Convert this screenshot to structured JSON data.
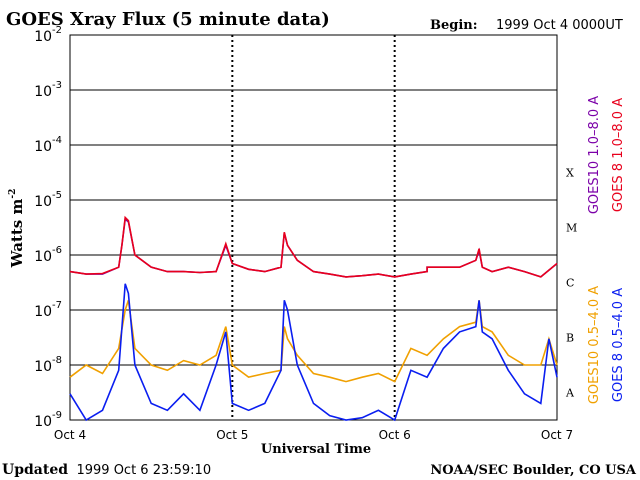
{
  "chart_data": {
    "type": "line",
    "title": "GOES Xray Flux (5 minute data)",
    "begin_label": "Begin:",
    "begin_value": "1999 Oct 4 0000UT",
    "ylabel": "Watts m",
    "ylabel_sup": "-2",
    "xlabel": "Universal Time",
    "y_scale": "log",
    "ylim": [
      1e-09,
      0.01
    ],
    "y_ticks": [
      {
        "base": "10",
        "exp": "-2"
      },
      {
        "base": "10",
        "exp": "-3"
      },
      {
        "base": "10",
        "exp": "-4"
      },
      {
        "base": "10",
        "exp": "-5"
      },
      {
        "base": "10",
        "exp": "-6"
      },
      {
        "base": "10",
        "exp": "-7"
      },
      {
        "base": "10",
        "exp": "-8"
      },
      {
        "base": "10",
        "exp": "-9"
      }
    ],
    "x_ticks": [
      "Oct 4",
      "Oct 5",
      "Oct 6",
      "Oct 7"
    ],
    "xlim_days": [
      0,
      3
    ],
    "flare_classes": [
      "X",
      "M",
      "C",
      "B",
      "A"
    ],
    "series": [
      {
        "name": "GOES10 1.0-8.0 A",
        "color": "#7b00a8",
        "x": [
          0,
          0.1,
          0.2,
          0.3,
          0.32,
          0.34,
          0.36,
          0.4,
          0.5,
          0.6,
          0.7,
          0.8,
          0.9,
          0.96,
          1.0,
          1.1,
          1.2,
          1.3,
          1.32,
          1.34,
          1.4,
          1.5,
          1.6,
          1.7,
          1.8,
          1.9,
          2.0,
          2.1,
          2.2,
          2.2,
          2.4,
          2.5,
          2.52,
          2.54,
          2.6,
          2.7,
          2.8,
          2.9,
          3.0
        ],
        "y": [
          5e-07,
          4.5e-07,
          4.5e-07,
          6e-07,
          1.5e-06,
          4.5e-06,
          4e-06,
          1e-06,
          6e-07,
          5e-07,
          5e-07,
          4.8e-07,
          5e-07,
          1.5e-06,
          7e-07,
          5.5e-07,
          5e-07,
          6e-07,
          2.5e-06,
          1.5e-06,
          8e-07,
          5e-07,
          4.5e-07,
          4e-07,
          4.2e-07,
          4.5e-07,
          4e-07,
          4.5e-07,
          5e-07,
          6e-07,
          6e-07,
          8e-07,
          1.2e-06,
          6e-07,
          5e-07,
          6e-07,
          5e-07,
          4e-07,
          7e-07
        ]
      },
      {
        "name": "GOES 8 1.0-8.0 A",
        "color": "#e8001c",
        "x": [
          0,
          0.1,
          0.2,
          0.3,
          0.32,
          0.34,
          0.36,
          0.4,
          0.5,
          0.6,
          0.7,
          0.8,
          0.9,
          0.96,
          1.0,
          1.1,
          1.2,
          1.3,
          1.32,
          1.34,
          1.4,
          1.5,
          1.6,
          1.7,
          1.8,
          1.9,
          2.0,
          2.1,
          2.2,
          2.2,
          2.4,
          2.5,
          2.52,
          2.54,
          2.6,
          2.7,
          2.8,
          2.9,
          3.0
        ],
        "y": [
          5e-07,
          4.5e-07,
          4.6e-07,
          6e-07,
          1.5e-06,
          4.8e-06,
          4.2e-06,
          1e-06,
          6e-07,
          5e-07,
          5e-07,
          4.8e-07,
          5e-07,
          1.6e-06,
          7e-07,
          5.5e-07,
          5e-07,
          6e-07,
          2.6e-06,
          1.5e-06,
          8e-07,
          5e-07,
          4.5e-07,
          4e-07,
          4.2e-07,
          4.5e-07,
          4e-07,
          4.5e-07,
          5e-07,
          6e-07,
          6e-07,
          8e-07,
          1.3e-06,
          6e-07,
          5e-07,
          6e-07,
          5e-07,
          4e-07,
          7e-07
        ]
      },
      {
        "name": "GOES10 0.5-4.0 A",
        "color": "#f0a000",
        "x": [
          0,
          0.1,
          0.2,
          0.3,
          0.34,
          0.36,
          0.4,
          0.5,
          0.6,
          0.7,
          0.8,
          0.9,
          0.96,
          1.0,
          1.1,
          1.2,
          1.3,
          1.32,
          1.34,
          1.4,
          1.5,
          1.6,
          1.7,
          1.8,
          1.9,
          2.0,
          2.1,
          2.2,
          2.3,
          2.4,
          2.5,
          2.52,
          2.54,
          2.6,
          2.7,
          2.8,
          2.9,
          2.95,
          3.0
        ],
        "y": [
          6e-09,
          1e-08,
          7e-09,
          2e-08,
          1e-07,
          1.5e-07,
          2e-08,
          1e-08,
          8e-09,
          1.2e-08,
          1e-08,
          1.5e-08,
          5e-08,
          1e-08,
          6e-09,
          7e-09,
          8e-09,
          5e-08,
          3e-08,
          1.5e-08,
          7e-09,
          6e-09,
          5e-09,
          6e-09,
          7e-09,
          5e-09,
          2e-08,
          1.5e-08,
          3e-08,
          5e-08,
          6e-08,
          1.5e-07,
          5e-08,
          4e-08,
          1.5e-08,
          1e-08,
          1e-08,
          3e-08,
          1e-08
        ]
      },
      {
        "name": "GOES 8 0.5-4.0 A",
        "color": "#0a1ef0",
        "x": [
          0,
          0.1,
          0.2,
          0.3,
          0.34,
          0.36,
          0.4,
          0.5,
          0.6,
          0.7,
          0.8,
          0.9,
          0.96,
          1.0,
          1.1,
          1.2,
          1.3,
          1.32,
          1.34,
          1.4,
          1.5,
          1.6,
          1.7,
          1.8,
          1.9,
          2.0,
          2.1,
          2.2,
          2.3,
          2.4,
          2.5,
          2.52,
          2.54,
          2.6,
          2.7,
          2.8,
          2.9,
          2.95,
          3.0
        ],
        "y": [
          3e-09,
          1e-09,
          1.5e-09,
          8e-09,
          3e-07,
          2e-07,
          1e-08,
          2e-09,
          1.5e-09,
          3e-09,
          1.5e-09,
          1e-08,
          4e-08,
          2e-09,
          1.5e-09,
          2e-09,
          8e-09,
          1.5e-07,
          1e-07,
          1e-08,
          2e-09,
          1.2e-09,
          1e-09,
          1.1e-09,
          1.5e-09,
          1e-09,
          8e-09,
          6e-09,
          2e-08,
          4e-08,
          5e-08,
          1.5e-07,
          4e-08,
          3e-08,
          8e-09,
          3e-09,
          2e-09,
          3e-08,
          6e-09
        ]
      }
    ],
    "right_labels": [
      {
        "text": "GOES10 1.0–8.0 A",
        "color": "#7b00a8"
      },
      {
        "text": "GOES 8 1.0–8.0 A",
        "color": "#e8001c"
      },
      {
        "text": "GOES10 0.5–4.0 A",
        "color": "#f0a000"
      },
      {
        "text": "GOES 8 0.5–4.0 A",
        "color": "#0a1ef0"
      }
    ],
    "grid": true
  },
  "footer": {
    "updated_label": "Updated",
    "updated_value": "1999 Oct  6 23:59:10",
    "credit": "NOAA/SEC Boulder, CO USA"
  }
}
